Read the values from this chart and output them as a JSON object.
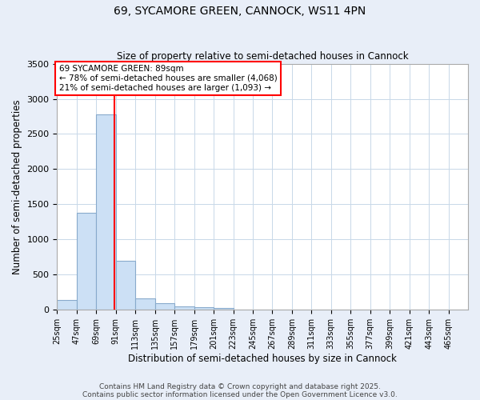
{
  "title1": "69, SYCAMORE GREEN, CANNOCK, WS11 4PN",
  "title2": "Size of property relative to semi-detached houses in Cannock",
  "xlabel": "Distribution of semi-detached houses by size in Cannock",
  "ylabel": "Number of semi-detached properties",
  "bar_color": "#cce0f5",
  "bar_edge_color": "#88aacc",
  "bin_labels": [
    "25sqm",
    "47sqm",
    "69sqm",
    "91sqm",
    "113sqm",
    "135sqm",
    "157sqm",
    "179sqm",
    "201sqm",
    "223sqm",
    "245sqm",
    "267sqm",
    "289sqm",
    "311sqm",
    "333sqm",
    "355sqm",
    "377sqm",
    "399sqm",
    "421sqm",
    "443sqm",
    "465sqm"
  ],
  "bin_values": [
    140,
    1380,
    2780,
    700,
    160,
    90,
    55,
    35,
    30,
    0,
    0,
    0,
    0,
    0,
    0,
    0,
    0,
    0,
    0,
    0,
    0
  ],
  "property_line_x": 89,
  "property_line_color": "red",
  "annotation_text": "69 SYCAMORE GREEN: 89sqm\n← 78% of semi-detached houses are smaller (4,068)\n21% of semi-detached houses are larger (1,093) →",
  "ylim": [
    0,
    3500
  ],
  "yticks": [
    0,
    500,
    1000,
    1500,
    2000,
    2500,
    3000,
    3500
  ],
  "footnote1": "Contains HM Land Registry data © Crown copyright and database right 2025.",
  "footnote2": "Contains public sector information licensed under the Open Government Licence v3.0.",
  "background_color": "#e8eef8",
  "plot_bg_color": "#ffffff",
  "grid_color": "#c8d8e8"
}
